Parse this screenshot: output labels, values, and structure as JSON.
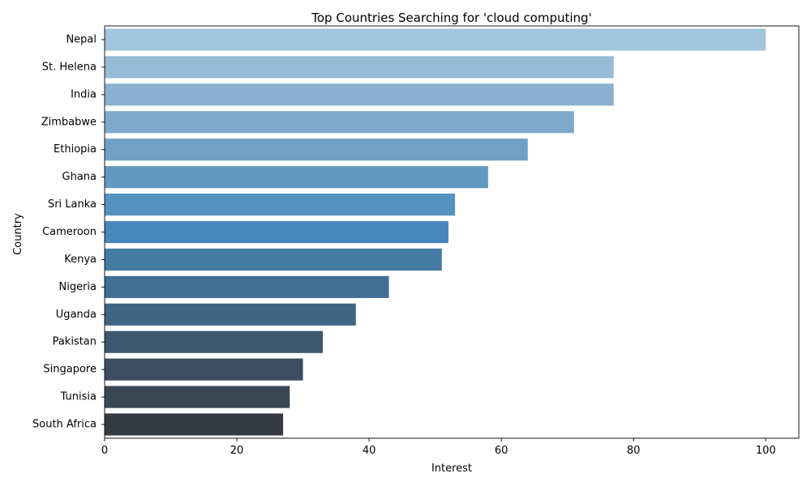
{
  "chart_data": {
    "type": "bar",
    "orientation": "horizontal",
    "title": "Top Countries Searching for 'cloud computing'",
    "xlabel": "Interest",
    "ylabel": "Country",
    "xlim": [
      0,
      105
    ],
    "x_ticks": [
      0,
      20,
      40,
      60,
      80,
      100
    ],
    "grid": false,
    "palette": "Blues_d",
    "categories": [
      "Nepal",
      "St. Helena",
      "India",
      "Zimbabwe",
      "Ethiopia",
      "Ghana",
      "Sri Lanka",
      "Cameroon",
      "Kenya",
      "Nigeria",
      "Uganda",
      "Pakistan",
      "Singapore",
      "Tunisia",
      "South Africa"
    ],
    "values": [
      100,
      77,
      77,
      71,
      64,
      58,
      53,
      52,
      51,
      43,
      38,
      33,
      30,
      28,
      27
    ],
    "colors": [
      "#a1c5dc",
      "#96bbd6",
      "#8ab1cf",
      "#7ea9cc",
      "#70a0c6",
      "#6299c2",
      "#5692c0",
      "#4787bb",
      "#437ba1",
      "#406e94",
      "#3f6582",
      "#3d586e",
      "#3c4e61",
      "#3a4754",
      "#363a42"
    ]
  }
}
